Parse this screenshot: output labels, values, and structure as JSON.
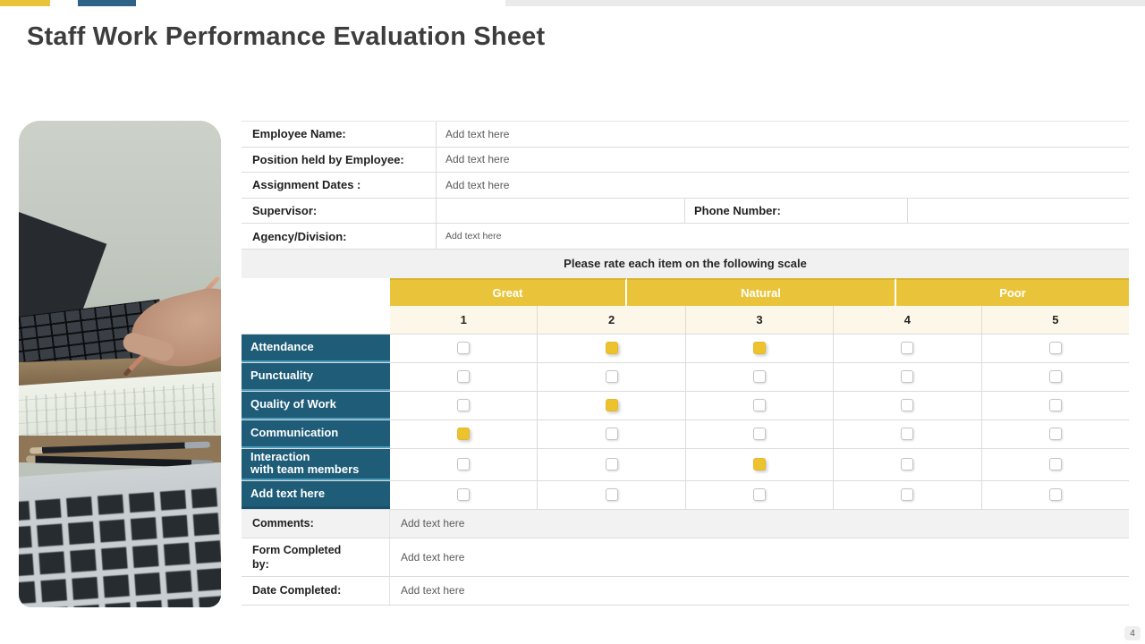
{
  "slide": {
    "title": "Staff Work Performance Evaluation Sheet",
    "page_number": "4"
  },
  "colors": {
    "accent_yellow": "#E9C43B",
    "accent_blue": "#2E6287",
    "row_label_teal": "#1E5C78",
    "checkbox_checked_yellow": "#ECC32F",
    "numbers_row_cream": "#FCF7E8",
    "shaded_row_gray": "#F2F2F2"
  },
  "form": {
    "rows": [
      {
        "label": "Employee Name:",
        "value": "Add text here"
      },
      {
        "label": "Position held by Employee:",
        "value": "Add text here"
      },
      {
        "label": "Assignment Dates :",
        "value": "Add text here"
      },
      {
        "label": "Supervisor:",
        "value": "",
        "label2": "Phone Number:",
        "value2": ""
      },
      {
        "label": "Agency/Division:",
        "value": "Add text here",
        "small": true
      }
    ]
  },
  "scale": {
    "instruction": "Please rate each item on the following scale",
    "groups": [
      "Great",
      "Natural",
      "Poor"
    ],
    "numbers": [
      "1",
      "2",
      "3",
      "4",
      "5"
    ]
  },
  "ratings": {
    "rows": [
      {
        "label": "Attendance",
        "checks": [
          false,
          true,
          true,
          false,
          false
        ]
      },
      {
        "label": "Punctuality",
        "checks": [
          false,
          false,
          false,
          false,
          false
        ]
      },
      {
        "label": "Quality of Work",
        "checks": [
          false,
          true,
          false,
          false,
          false
        ]
      },
      {
        "label": "Communication",
        "checks": [
          true,
          false,
          false,
          false,
          false
        ]
      },
      {
        "label": "Interaction\nwith team members",
        "checks": [
          false,
          false,
          true,
          false,
          false
        ]
      },
      {
        "label": "Add text here",
        "checks": [
          false,
          false,
          false,
          false,
          false
        ]
      }
    ]
  },
  "footer": {
    "rows": [
      {
        "label": "Comments:",
        "value": "Add text here"
      },
      {
        "label": "Form Completed\nby:",
        "value": "Add text here"
      },
      {
        "label": "Date Completed:",
        "value": "Add text here"
      }
    ]
  }
}
